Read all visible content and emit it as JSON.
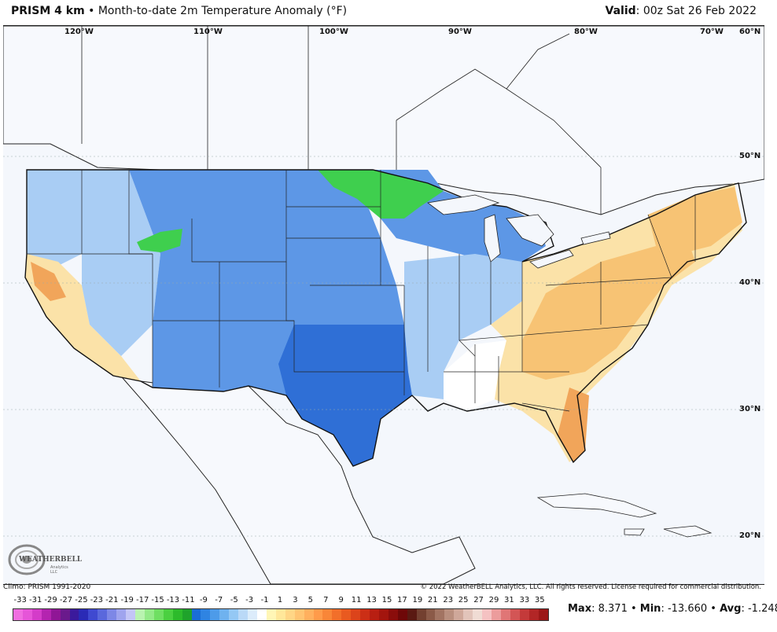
{
  "header": {
    "product": "PRISM 4 km",
    "separator": "•",
    "description": "Month-to-date 2m Temperature Anomaly (°F)",
    "valid_label": "Valid",
    "valid_value": ": 00z Sat 26 Feb 2022"
  },
  "map": {
    "longitude_labels": [
      "120°W",
      "110°W",
      "100°W",
      "90°W",
      "80°W",
      "70°W",
      "60°N"
    ],
    "latitude_labels": [
      "50°N",
      "40°N",
      "30°N",
      "20°N"
    ],
    "colors": {
      "ocean": "#f4f7fc",
      "land_outside": "#f7f9fd",
      "strong_cold": "#2f6fd6",
      "moderate_cold": "#5d97e6",
      "mild_cold": "#a9cdf4",
      "near_normal": "#ffffff",
      "mild_warm": "#fbe2a8",
      "warm": "#f7c374",
      "hot": "#f1a55a",
      "green_cold": "#3fcf4e"
    }
  },
  "logo": {
    "text": "WEATHERBELL",
    "subtext": "Analytics LLC"
  },
  "footer": {
    "climo": "Climo: PRISM 1991-2020",
    "copyright": "© 2022 WeatherBELL Analytics, LLC. All rights reserved. License required for commercial distribution."
  },
  "colorbar": {
    "labels": [
      "-33",
      "-31",
      "-29",
      "-27",
      "-25",
      "-23",
      "-21",
      "-19",
      "-17",
      "-15",
      "-13",
      "-11",
      "-9",
      "-7",
      "-5",
      "-3",
      "-1",
      "1",
      "3",
      "5",
      "7",
      "9",
      "11",
      "13",
      "15",
      "17",
      "19",
      "21",
      "23",
      "25",
      "27",
      "29",
      "31",
      "33",
      "35"
    ],
    "colors": [
      "#f06ee0",
      "#e655d8",
      "#d43cc9",
      "#b424b0",
      "#901696",
      "#6a1a8c",
      "#3b1a9c",
      "#2a2ab6",
      "#3f49d0",
      "#5a68dc",
      "#7d87e6",
      "#9fa4ee",
      "#c3c5f6",
      "#b9f3b0",
      "#93ea88",
      "#6fdf62",
      "#4bd040",
      "#2dbb2b",
      "#1fa32b",
      "#1a6ed6",
      "#2f84e2",
      "#4d9be9",
      "#6fb2ef",
      "#94c8f4",
      "#bad9f7",
      "#dcecfb",
      "#ffffff",
      "#fff6b6",
      "#ffe79a",
      "#ffd686",
      "#ffc472",
      "#ffb05e",
      "#ff9b4a",
      "#f98638",
      "#f26f2a",
      "#e95a20",
      "#dc441b",
      "#cc2f16",
      "#b81f12",
      "#a3150e",
      "#8a0d0b",
      "#6e0808",
      "#5a1a12",
      "#734030",
      "#8b5a48",
      "#a27462",
      "#b98f7e",
      "#cfa89a",
      "#e2c4ba",
      "#f0dcd4",
      "#f5c2c2",
      "#ec9c9c",
      "#e07676",
      "#d35555",
      "#c43a3a",
      "#b22626",
      "#9c1818"
    ]
  },
  "stats": {
    "max_label": "Max",
    "max_value": ": 8.371",
    "sep1": " • ",
    "min_label": "Min",
    "min_value": ": -13.660",
    "sep2": " • ",
    "avg_label": "Avg",
    "avg_value": ": -1.248"
  }
}
